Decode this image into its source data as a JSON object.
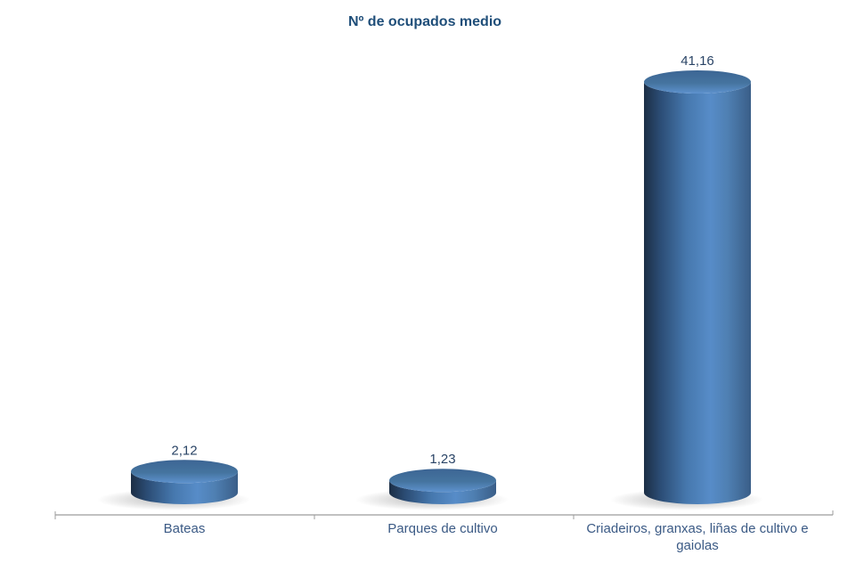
{
  "chart_data": {
    "type": "bar",
    "subtype": "cylinder-3d",
    "title": "Nº de ocupados medio",
    "categories": [
      "Bateas",
      "Parques de cultivo",
      "Criadeiros, granxas, liñas de cultivo e gaiolas"
    ],
    "values": [
      2.12,
      1.23,
      41.16
    ],
    "value_labels": [
      "2,12",
      "1,23",
      "41,16"
    ],
    "xlabel": "",
    "ylabel": "",
    "ylim": [
      0,
      45
    ],
    "grid": false,
    "legend": false,
    "axis_ticks_x_count": 4,
    "colors": {
      "title": "#1F4E79",
      "category_label": "#3B5A85",
      "value_label": "#2A4466",
      "bar_body_left": "#1C2E45",
      "bar_body_shade": "#2B4C74",
      "bar_body_mid": "#4678AE",
      "bar_body_highlight": "#578CC8",
      "bar_body_right": "#3A5E88",
      "bar_top_dark": "#3C6594",
      "bar_top_light": "#5E92CE",
      "axis_line": "#9C9C9C",
      "shadow": "#8C8C8C",
      "background": "#FFFFFF"
    }
  }
}
